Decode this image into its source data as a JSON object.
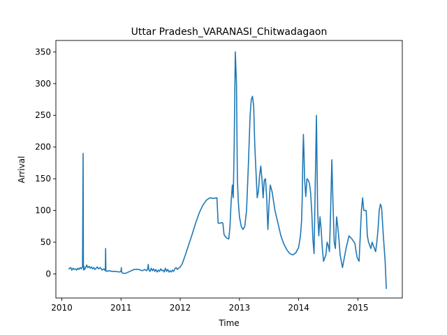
{
  "chart_data": {
    "type": "line",
    "title": "Uttar Pradesh_VARANASI_Chitwadagaon",
    "xlabel": "Time",
    "ylabel": "Arrival",
    "xlim": [
      2009.9,
      2015.75
    ],
    "ylim": [
      -38,
      368
    ],
    "xticks": [
      2010,
      2011,
      2012,
      2013,
      2014,
      2015
    ],
    "xtick_labels": [
      "2010",
      "2011",
      "2012",
      "2013",
      "2014",
      "2015"
    ],
    "yticks": [
      0,
      50,
      100,
      150,
      200,
      250,
      300,
      350
    ],
    "ytick_labels": [
      "0",
      "50",
      "100",
      "150",
      "200",
      "250",
      "300",
      "350"
    ],
    "grid": false,
    "line_color": "#1f77b4",
    "series": [
      {
        "x": [
          2010.12,
          2010.15,
          2010.17,
          2010.19,
          2010.21,
          2010.23,
          2010.25,
          2010.27,
          2010.29,
          2010.31,
          2010.33,
          2010.35,
          2010.36,
          2010.365,
          2010.37,
          2010.375,
          2010.38,
          2010.4,
          2010.42,
          2010.44,
          2010.46,
          2010.48,
          2010.5,
          2010.52,
          2010.54,
          2010.56,
          2010.58,
          2010.6,
          2010.62,
          2010.65,
          2010.68,
          2010.71,
          2010.735,
          2010.74,
          2010.745,
          2010.76,
          2010.8,
          2010.85,
          2010.9,
          2010.97,
          2011.0,
          2011.005,
          2011.01,
          2011.03,
          2011.08,
          2011.15,
          2011.22,
          2011.3,
          2011.36,
          2011.4,
          2011.43,
          2011.45,
          2011.46,
          2011.47,
          2011.49,
          2011.51,
          2011.53,
          2011.55,
          2011.57,
          2011.59,
          2011.61,
          2011.63,
          2011.65,
          2011.67,
          2011.69,
          2011.71,
          2011.73,
          2011.75,
          2011.77,
          2011.79,
          2011.81,
          2011.83,
          2011.85,
          2011.87,
          2011.89,
          2011.91,
          2011.93,
          2011.95,
          2011.97,
          2011.99,
          2012.03,
          2012.08,
          2012.14,
          2012.2,
          2012.26,
          2012.32,
          2012.38,
          2012.44,
          2012.5,
          2012.56,
          2012.62,
          2012.64,
          2012.66,
          2012.68,
          2012.7,
          2012.72,
          2012.74,
          2012.76,
          2012.78,
          2012.8,
          2012.82,
          2012.84,
          2012.86,
          2012.88,
          2012.895,
          2012.91,
          2012.93,
          2012.95,
          2012.965,
          2012.98,
          2013.0,
          2013.03,
          2013.06,
          2013.09,
          2013.12,
          2013.15,
          2013.18,
          2013.2,
          2013.22,
          2013.24,
          2013.26,
          2013.28,
          2013.3,
          2013.32,
          2013.34,
          2013.36,
          2013.38,
          2013.4,
          2013.42,
          2013.44,
          2013.46,
          2013.48,
          2013.5,
          2013.52,
          2013.55,
          2013.6,
          2013.65,
          2013.7,
          2013.75,
          2013.8,
          2013.85,
          2013.9,
          2013.95,
          2014.0,
          2014.03,
          2014.05,
          2014.06,
          2014.07,
          2014.08,
          2014.09,
          2014.1,
          2014.12,
          2014.14,
          2014.16,
          2014.18,
          2014.2,
          2014.22,
          2014.24,
          2014.26,
          2014.28,
          2014.3,
          2014.32,
          2014.34,
          2014.36,
          2014.38,
          2014.4,
          2014.42,
          2014.44,
          2014.46,
          2014.48,
          2014.5,
          2014.52,
          2014.54,
          2014.56,
          2014.58,
          2014.6,
          2014.62,
          2014.64,
          2014.66,
          2014.68,
          2014.7,
          2014.72,
          2014.74,
          2014.76,
          2014.8,
          2014.85,
          2014.9,
          2014.95,
          2014.97,
          2014.99,
          2015.02,
          2015.04,
          2015.06,
          2015.08,
          2015.1,
          2015.12,
          2015.14,
          2015.16,
          2015.18,
          2015.2,
          2015.22,
          2015.24,
          2015.26,
          2015.28,
          2015.3,
          2015.32,
          2015.34,
          2015.36,
          2015.38,
          2015.4,
          2015.43,
          2015.46,
          2015.48
        ],
        "y": [
          8,
          10,
          6,
          9,
          7,
          8,
          6,
          9,
          7,
          10,
          8,
          12,
          190,
          10,
          6,
          12,
          7,
          9,
          14,
          10,
          12,
          9,
          11,
          8,
          10,
          7,
          9,
          11,
          8,
          10,
          6,
          8,
          5,
          40,
          5,
          4,
          5,
          4,
          4,
          3,
          4,
          10,
          3,
          1,
          1,
          4,
          7,
          7,
          5,
          7,
          5,
          8,
          15,
          6,
          4,
          9,
          5,
          8,
          4,
          7,
          3,
          6,
          4,
          8,
          5,
          6,
          3,
          9,
          4,
          7,
          3,
          5,
          3,
          6,
          4,
          8,
          10,
          7,
          9,
          10,
          15,
          28,
          45,
          62,
          80,
          96,
          108,
          116,
          120,
          119,
          120,
          80,
          80,
          80,
          81,
          80,
          62,
          59,
          57,
          56,
          55,
          75,
          115,
          140,
          120,
          195,
          350,
          300,
          150,
          115,
          90,
          75,
          70,
          75,
          100,
          170,
          250,
          275,
          280,
          265,
          200,
          160,
          120,
          130,
          155,
          170,
          150,
          120,
          148,
          150,
          120,
          70,
          110,
          140,
          130,
          100,
          80,
          60,
          47,
          38,
          32,
          30,
          33,
          42,
          60,
          85,
          120,
          180,
          220,
          190,
          150,
          122,
          150,
          148,
          143,
          130,
          100,
          55,
          32,
          140,
          250,
          100,
          60,
          90,
          70,
          40,
          20,
          25,
          30,
          50,
          45,
          35,
          100,
          180,
          110,
          50,
          40,
          90,
          75,
          55,
          30,
          20,
          10,
          20,
          40,
          60,
          55,
          48,
          35,
          25,
          20,
          60,
          100,
          120,
          100,
          100,
          100,
          60,
          50,
          45,
          40,
          50,
          45,
          40,
          35,
          50,
          70,
          100,
          110,
          105,
          60,
          20,
          -23
        ]
      }
    ]
  }
}
